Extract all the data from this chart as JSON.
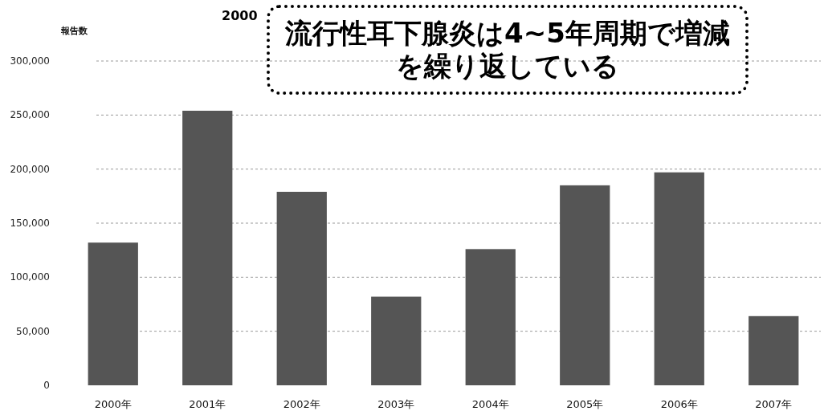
{
  "chart_data": {
    "type": "bar",
    "title": "流行性耳下腺炎は4~5年周期で増減を繰り返している",
    "ylabel": "報告数",
    "annotations": [
      "2000"
    ],
    "categories": [
      "2000年",
      "2001年",
      "2002年",
      "2003年",
      "2004年",
      "2005年",
      "2006年",
      "2007年"
    ],
    "values": [
      132000,
      254000,
      179000,
      82000,
      126000,
      185000,
      197000,
      64000
    ],
    "color": "#555555",
    "ylim": [
      0,
      300000
    ],
    "yticks": [
      {
        "value": 0,
        "label": "0"
      },
      {
        "value": 50000,
        "label": "50,000"
      },
      {
        "value": 100000,
        "label": "100,000"
      },
      {
        "value": 150000,
        "label": "150,000"
      },
      {
        "value": 200000,
        "label": "200,000"
      },
      {
        "value": 250000,
        "label": "250,000"
      },
      {
        "value": 300000,
        "label": "300,000"
      }
    ],
    "grid": "y"
  }
}
